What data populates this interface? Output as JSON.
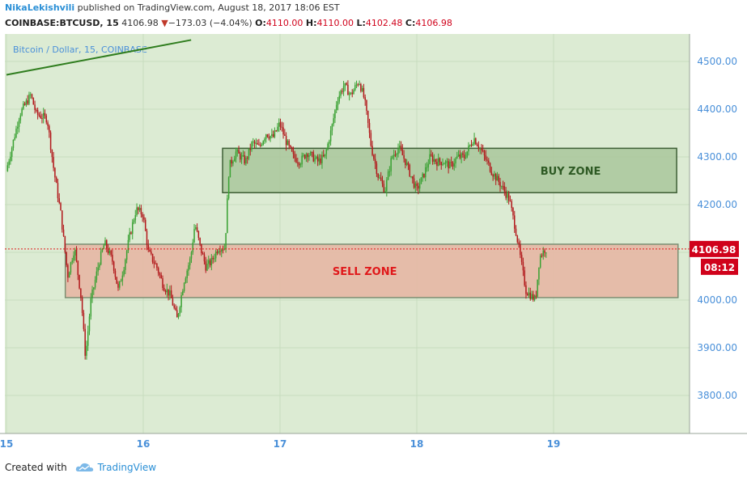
{
  "header": {
    "author": "NikaLekishvili",
    "published_text": "published on TradingView.com, August 18, 2017 18:06 EST",
    "symbol": "COINBASE:BTCUSD, 15",
    "last": "4106.98",
    "change_arrow": "▼",
    "change": "−173.03 (−4.04%)",
    "o_label": "O:",
    "o_value": "4110.00",
    "h_label": "H:",
    "h_value": "4110.00",
    "l_label": "L:",
    "l_value": "4102.48",
    "c_label": "C:",
    "c_value": "4106.98"
  },
  "footer": {
    "created_with": "Created with",
    "brand": "TradingView"
  },
  "colors": {
    "plot_bg": "#dcebd3",
    "up": "#3aa133",
    "down": "#b2191c",
    "buy_zone": "#a9c79b",
    "sell_zone": "#e6b7a4",
    "price_label": "#d0021b",
    "axis_text": "#4a90d9"
  },
  "chart_data": {
    "type": "candlestick",
    "title": "Bitcoin / Dollar, 15, COINBASE",
    "ylim": [
      3730,
      4560
    ],
    "y_ticks": [
      3800,
      3900,
      4000,
      4100,
      4200,
      4300,
      4400,
      4500
    ],
    "y_tick_labels": [
      "3800.00",
      "3900.00",
      "4000.00",
      "4100.00",
      "4200.00",
      "4300.00",
      "4400.00",
      "4500.00"
    ],
    "x_ticks": [
      15,
      16,
      17,
      18,
      19
    ],
    "x_tick_labels": [
      "15",
      "16",
      "17",
      "18",
      "19"
    ],
    "price_path": [
      [
        15.0,
        4270
      ],
      [
        15.05,
        4330
      ],
      [
        15.1,
        4390
      ],
      [
        15.18,
        4430
      ],
      [
        15.22,
        4390
      ],
      [
        15.3,
        4380
      ],
      [
        15.35,
        4270
      ],
      [
        15.4,
        4180
      ],
      [
        15.45,
        4050
      ],
      [
        15.5,
        4110
      ],
      [
        15.55,
        4000
      ],
      [
        15.58,
        3880
      ],
      [
        15.62,
        4000
      ],
      [
        15.68,
        4080
      ],
      [
        15.72,
        4120
      ],
      [
        15.78,
        4080
      ],
      [
        15.82,
        4020
      ],
      [
        15.86,
        4070
      ],
      [
        15.9,
        4130
      ],
      [
        15.95,
        4190
      ],
      [
        16.0,
        4180
      ],
      [
        16.04,
        4100
      ],
      [
        16.1,
        4070
      ],
      [
        16.15,
        4030
      ],
      [
        16.2,
        4010
      ],
      [
        16.25,
        3960
      ],
      [
        16.3,
        4040
      ],
      [
        16.35,
        4090
      ],
      [
        16.38,
        4160
      ],
      [
        16.42,
        4110
      ],
      [
        16.46,
        4070
      ],
      [
        16.5,
        4080
      ],
      [
        16.55,
        4110
      ],
      [
        16.6,
        4110
      ],
      [
        16.63,
        4280
      ],
      [
        16.68,
        4310
      ],
      [
        16.75,
        4290
      ],
      [
        16.8,
        4330
      ],
      [
        16.85,
        4320
      ],
      [
        16.9,
        4350
      ],
      [
        16.95,
        4340
      ],
      [
        17.0,
        4370
      ],
      [
        17.05,
        4330
      ],
      [
        17.1,
        4300
      ],
      [
        17.15,
        4290
      ],
      [
        17.2,
        4310
      ],
      [
        17.28,
        4290
      ],
      [
        17.33,
        4300
      ],
      [
        17.38,
        4360
      ],
      [
        17.42,
        4420
      ],
      [
        17.47,
        4450
      ],
      [
        17.52,
        4430
      ],
      [
        17.58,
        4460
      ],
      [
        17.62,
        4420
      ],
      [
        17.67,
        4320
      ],
      [
        17.72,
        4260
      ],
      [
        17.77,
        4230
      ],
      [
        17.82,
        4300
      ],
      [
        17.87,
        4320
      ],
      [
        17.92,
        4290
      ],
      [
        18.0,
        4230
      ],
      [
        18.05,
        4260
      ],
      [
        18.1,
        4300
      ],
      [
        18.15,
        4290
      ],
      [
        18.2,
        4290
      ],
      [
        18.25,
        4280
      ],
      [
        18.3,
        4300
      ],
      [
        18.35,
        4300
      ],
      [
        18.42,
        4340
      ],
      [
        18.48,
        4310
      ],
      [
        18.55,
        4270
      ],
      [
        18.62,
        4240
      ],
      [
        18.68,
        4210
      ],
      [
        18.73,
        4140
      ],
      [
        18.8,
        4020
      ],
      [
        18.87,
        4000
      ],
      [
        18.9,
        4090
      ],
      [
        18.94,
        4107
      ]
    ],
    "last_price": 4106.98,
    "last_price_label": "4106.98",
    "countdown_label": "08:12",
    "zones": [
      {
        "label": "BUY ZONE",
        "x_start": 16.58,
        "x_end": 19.9,
        "y_low": 4225,
        "y_high": 4318
      },
      {
        "label": "SELL ZONE",
        "x_start": 15.43,
        "x_end": 19.91,
        "y_low": 4005,
        "y_high": 4117
      }
    ],
    "trend_line": {
      "x1": 15.0,
      "y1": 4472,
      "x2": 16.35,
      "y2": 4545
    },
    "grid": true
  }
}
